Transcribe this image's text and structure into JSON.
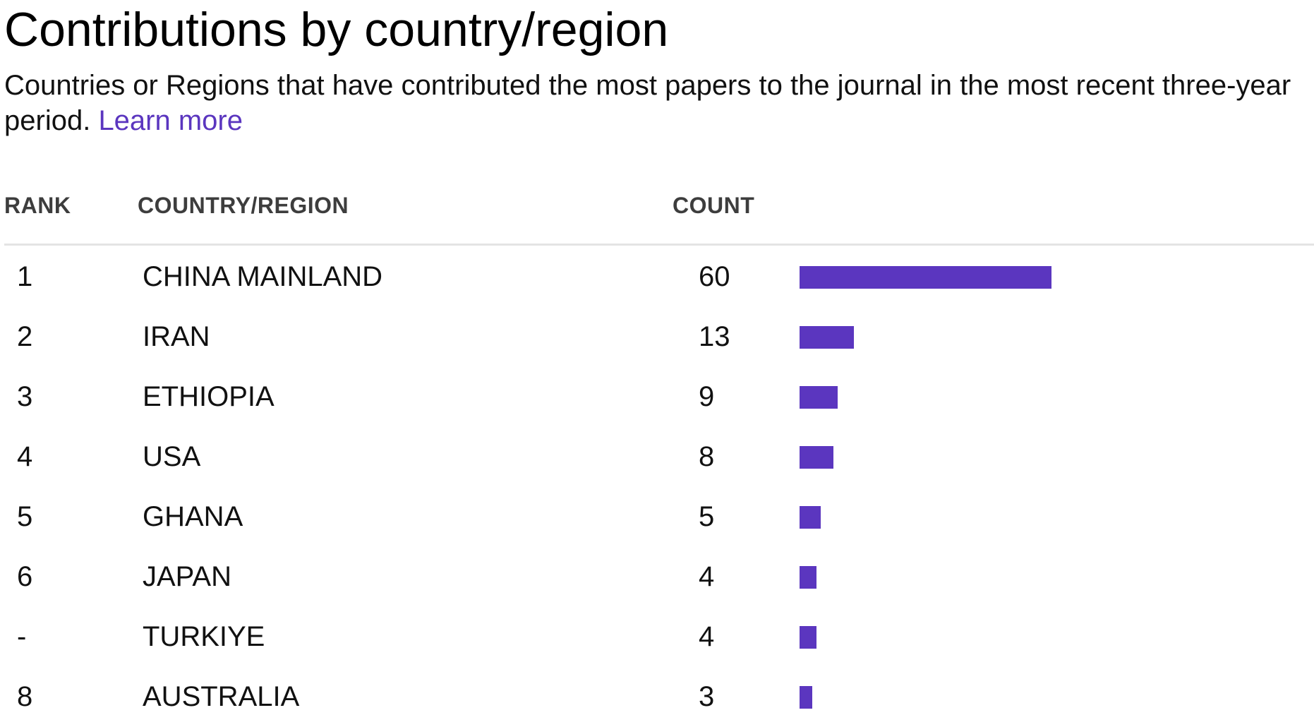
{
  "title": "Contributions by country/region",
  "subtitle": {
    "text": "Countries or Regions that have contributed the most papers to the journal in the most recent three-year period.",
    "link": "Learn more"
  },
  "headers": {
    "rank": "RANK",
    "country": "COUNTRY/REGION",
    "count": "COUNT"
  },
  "colors": {
    "accent": "#5b36bf",
    "divider": "#e4e4e4"
  },
  "chart_data": {
    "type": "bar",
    "orientation": "horizontal",
    "title": "Contributions by country/region",
    "categories": [
      "CHINA MAINLAND",
      "IRAN",
      "ETHIOPIA",
      "USA",
      "GHANA",
      "JAPAN",
      "TURKIYE",
      "AUSTRALIA"
    ],
    "values": [
      60,
      13,
      9,
      8,
      5,
      4,
      4,
      3
    ],
    "rows": [
      {
        "rank": "1",
        "country": "CHINA MAINLAND",
        "count": 60
      },
      {
        "rank": "2",
        "country": "IRAN",
        "count": 13
      },
      {
        "rank": "3",
        "country": "ETHIOPIA",
        "count": 9
      },
      {
        "rank": "4",
        "country": "USA",
        "count": 8
      },
      {
        "rank": "5",
        "country": "GHANA",
        "count": 5
      },
      {
        "rank": "6",
        "country": "JAPAN",
        "count": 4
      },
      {
        "rank": "-",
        "country": "TURKIYE",
        "count": 4
      },
      {
        "rank": "8",
        "country": "AUSTRALIA",
        "count": 3
      }
    ]
  }
}
